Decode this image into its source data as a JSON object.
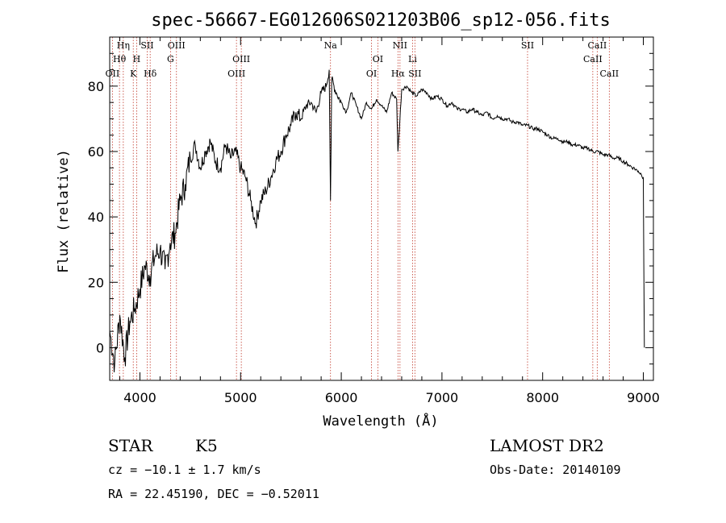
{
  "chart_data": {
    "type": "line",
    "title": "spec-56667-EG012606S021203B06_sp12-056.fits",
    "xlabel": "Wavelength (Å)",
    "ylabel": "Flux (relative)",
    "xlim": [
      3700,
      9100
    ],
    "ylim": [
      -10,
      95
    ],
    "xticks": [
      4000,
      5000,
      6000,
      7000,
      8000,
      9000
    ],
    "yticks": [
      0,
      20,
      40,
      60,
      80
    ],
    "grid": false,
    "series": [
      {
        "x": [
          3700,
          3750,
          3800,
          3850,
          3900,
          3950,
          4000,
          4050,
          4100,
          4150,
          4200,
          4250,
          4300,
          4350,
          4400,
          4450,
          4500,
          4550,
          4600,
          4650,
          4700,
          4750,
          4800,
          4850,
          4900,
          4950,
          5000,
          5050,
          5100,
          5150,
          5200,
          5250,
          5300,
          5350,
          5400,
          5450,
          5500,
          5550,
          5600,
          5650,
          5700,
          5750,
          5800,
          5850,
          5880,
          5893,
          5905,
          5950,
          6000,
          6050,
          6100,
          6150,
          6200,
          6250,
          6300,
          6350,
          6400,
          6450,
          6500,
          6550,
          6563,
          6600,
          6650,
          6700,
          6750,
          6800,
          6850,
          6900,
          6950,
          7000,
          7050,
          7100,
          7150,
          7200,
          7250,
          7300,
          7350,
          7400,
          7450,
          7500,
          7550,
          7600,
          7650,
          7700,
          7750,
          7800,
          7850,
          7900,
          7950,
          8000,
          8050,
          8100,
          8150,
          8200,
          8250,
          8300,
          8350,
          8400,
          8450,
          8500,
          8550,
          8600,
          8650,
          8700,
          8750,
          8800,
          8850,
          8900,
          8950,
          8980,
          9000,
          9010
        ],
        "y": [
          5,
          -5,
          10,
          -3,
          8,
          12,
          18,
          25,
          22,
          28,
          30,
          24,
          32,
          35,
          45,
          50,
          58,
          62,
          55,
          60,
          63,
          57,
          55,
          62,
          58,
          60,
          55,
          52,
          45,
          38,
          45,
          48,
          52,
          57,
          60,
          65,
          68,
          72,
          70,
          74,
          75,
          72,
          78,
          80,
          85,
          45,
          82,
          78,
          75,
          72,
          78,
          74,
          70,
          75,
          73,
          76,
          74,
          72,
          78,
          76,
          60,
          79,
          80,
          78,
          77,
          79,
          78,
          76,
          77,
          76,
          74,
          75,
          73,
          73,
          72,
          73,
          72,
          71,
          72,
          70,
          71,
          70,
          70,
          69,
          69,
          68,
          68,
          67,
          67,
          66,
          65,
          64,
          64,
          63,
          63,
          62,
          62,
          61,
          61,
          60,
          60,
          59,
          59,
          58,
          58,
          57,
          56,
          55,
          54,
          53,
          52,
          0
        ]
      }
    ],
    "spectral_lines": [
      {
        "label": "Hη",
        "x": 3835,
        "row": 0
      },
      {
        "label": "Hθ",
        "x": 3797,
        "row": 1
      },
      {
        "label": "OII",
        "x": 3727,
        "row": 2
      },
      {
        "label": "H",
        "x": 3968,
        "row": 1
      },
      {
        "label": "K",
        "x": 3934,
        "row": 2
      },
      {
        "label": "SII",
        "x": 4072,
        "row": 0
      },
      {
        "label": "Hδ",
        "x": 4102,
        "row": 2
      },
      {
        "label": "OIII",
        "x": 4363,
        "row": 0
      },
      {
        "label": "G",
        "x": 4304,
        "row": 1
      },
      {
        "label": "OIII",
        "x": 5007,
        "row": 1
      },
      {
        "label": "OIII",
        "x": 4959,
        "row": 2
      },
      {
        "label": "Na",
        "x": 5893,
        "row": 0
      },
      {
        "label": "OI",
        "x": 6363,
        "row": 1
      },
      {
        "label": "OI",
        "x": 6300,
        "row": 2
      },
      {
        "label": "NII",
        "x": 6583,
        "row": 0
      },
      {
        "label": "Hα",
        "x": 6563,
        "row": 2
      },
      {
        "label": "Li",
        "x": 6708,
        "row": 1
      },
      {
        "label": "SII",
        "x": 6731,
        "row": 2
      },
      {
        "label": "SII",
        "x": 7850,
        "row": 0
      },
      {
        "label": "CaII",
        "x": 8542,
        "row": 0
      },
      {
        "label": "CaII",
        "x": 8498,
        "row": 1
      },
      {
        "label": "CaII",
        "x": 8662,
        "row": 2
      }
    ],
    "info": {
      "class": "STAR",
      "subclass": "K5",
      "survey": "LAMOST DR2",
      "cz": "cz = −10.1 ± 1.7 km/s",
      "obs_date": "Obs-Date: 20140109",
      "radec": "RA =  22.45190, DEC =  −0.52011"
    }
  },
  "colors": {
    "spectrum": "#000000",
    "line_markers": "#c0392b",
    "axes": "#000000",
    "background": "#ffffff"
  }
}
